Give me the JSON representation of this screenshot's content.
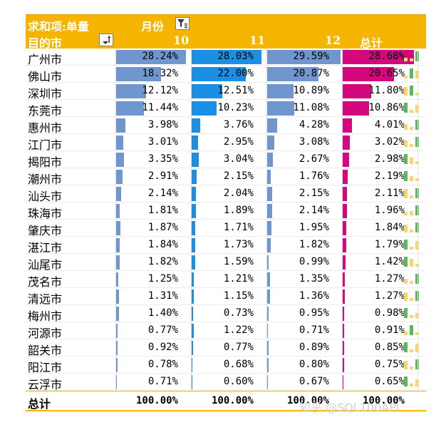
{
  "header": {
    "sum_label": "求和项:单量",
    "col_field": "月份",
    "row_field": "目的市",
    "months": [
      "10",
      "11",
      "12"
    ],
    "total_label": "总计"
  },
  "colors": {
    "header_bg": "#f4b400",
    "bar_10": "#6f96cf",
    "bar_11": "#1a8fe3",
    "bar_12": "#6f96cf",
    "bar_total": "#d4087c",
    "spark_green": "#5cb85c",
    "spark_yellow": "#f6d56a"
  },
  "rows": [
    {
      "city": "广州市",
      "v": [
        "28.24%",
        "28.03%",
        "29.59%",
        "28.68%"
      ],
      "n": [
        28.24,
        28.03,
        29.59,
        28.68
      ]
    },
    {
      "city": "佛山市",
      "v": [
        "18.32%",
        "22.00%",
        "20.87%",
        "20.65%"
      ],
      "n": [
        18.32,
        22.0,
        20.87,
        20.65
      ]
    },
    {
      "city": "深圳市",
      "v": [
        "12.12%",
        "12.51%",
        "10.89%",
        "11.80%"
      ],
      "n": [
        12.12,
        12.51,
        10.89,
        11.8
      ]
    },
    {
      "city": "东莞市",
      "v": [
        "11.44%",
        "10.23%",
        "11.08%",
        "10.86%"
      ],
      "n": [
        11.44,
        10.23,
        11.08,
        10.86
      ]
    },
    {
      "city": "惠州市",
      "v": [
        "3.98%",
        "3.76%",
        "4.28%",
        "4.01%"
      ],
      "n": [
        3.98,
        3.76,
        4.28,
        4.01
      ]
    },
    {
      "city": "江门市",
      "v": [
        "3.01%",
        "2.95%",
        "3.08%",
        "3.02%"
      ],
      "n": [
        3.01,
        2.95,
        3.08,
        3.02
      ]
    },
    {
      "city": "揭阳市",
      "v": [
        "3.35%",
        "3.04%",
        "2.67%",
        "2.98%"
      ],
      "n": [
        3.35,
        3.04,
        2.67,
        2.98
      ]
    },
    {
      "city": "潮州市",
      "v": [
        "2.91%",
        "2.15%",
        "1.76%",
        "2.19%"
      ],
      "n": [
        2.91,
        2.15,
        1.76,
        2.19
      ]
    },
    {
      "city": "汕头市",
      "v": [
        "2.14%",
        "2.04%",
        "2.15%",
        "2.11%"
      ],
      "n": [
        2.14,
        2.04,
        2.15,
        2.11
      ]
    },
    {
      "city": "珠海市",
      "v": [
        "1.81%",
        "1.89%",
        "2.14%",
        "1.96%"
      ],
      "n": [
        1.81,
        1.89,
        2.14,
        1.96
      ]
    },
    {
      "city": "肇庆市",
      "v": [
        "1.87%",
        "1.71%",
        "1.95%",
        "1.84%"
      ],
      "n": [
        1.87,
        1.71,
        1.95,
        1.84
      ]
    },
    {
      "city": "湛江市",
      "v": [
        "1.84%",
        "1.73%",
        "1.82%",
        "1.79%"
      ],
      "n": [
        1.84,
        1.73,
        1.82,
        1.79
      ]
    },
    {
      "city": "汕尾市",
      "v": [
        "1.82%",
        "1.59%",
        "0.99%",
        "1.42%"
      ],
      "n": [
        1.82,
        1.59,
        0.99,
        1.42
      ]
    },
    {
      "city": "茂名市",
      "v": [
        "1.25%",
        "1.21%",
        "1.35%",
        "1.27%"
      ],
      "n": [
        1.25,
        1.21,
        1.35,
        1.27
      ]
    },
    {
      "city": "清远市",
      "v": [
        "1.31%",
        "1.15%",
        "1.36%",
        "1.27%"
      ],
      "n": [
        1.31,
        1.15,
        1.36,
        1.27
      ]
    },
    {
      "city": "梅州市",
      "v": [
        "1.40%",
        "0.73%",
        "0.95%",
        "0.98%"
      ],
      "n": [
        1.4,
        0.73,
        0.95,
        0.98
      ]
    },
    {
      "city": "河源市",
      "v": [
        "0.77%",
        "1.22%",
        "0.71%",
        "0.91%"
      ],
      "n": [
        0.77,
        1.22,
        0.71,
        0.91
      ]
    },
    {
      "city": "韶关市",
      "v": [
        "0.92%",
        "0.77%",
        "0.89%",
        "0.85%"
      ],
      "n": [
        0.92,
        0.77,
        0.89,
        0.85
      ]
    },
    {
      "city": "阳江市",
      "v": [
        "0.78%",
        "0.68%",
        "0.80%",
        "0.75%"
      ],
      "n": [
        0.78,
        0.68,
        0.8,
        0.75
      ]
    },
    {
      "city": "云浮市",
      "v": [
        "0.71%",
        "0.60%",
        "0.67%",
        "0.65%"
      ],
      "n": [
        0.71,
        0.6,
        0.67,
        0.65
      ]
    }
  ],
  "totals": {
    "label": "总计",
    "v": [
      "100.00%",
      "100.00%",
      "100.00%",
      "100.00%"
    ]
  },
  "watermark": "知乎 @SQL100API",
  "icons": {
    "column_filter": "filter-active-icon",
    "row_sort": "sort-dropdown-icon"
  }
}
